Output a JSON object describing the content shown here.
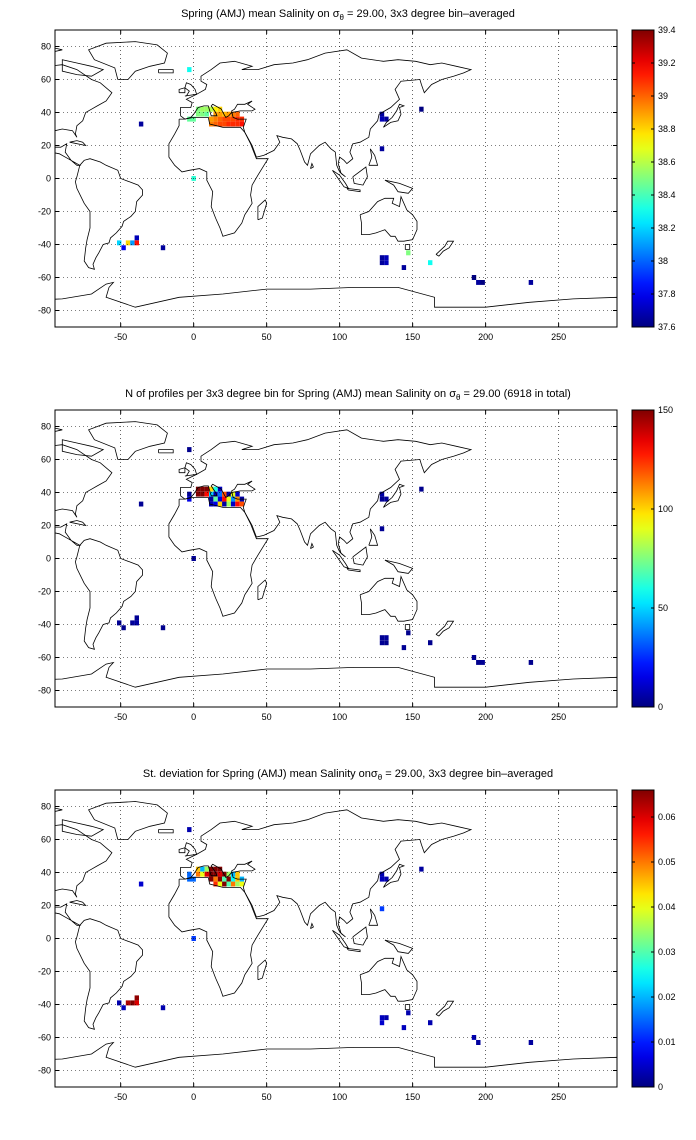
{
  "panels": [
    {
      "title_pre": "Spring (AMJ) mean Salinity on σ",
      "title_sub": "θ",
      "title_post": " = 29.00, 3x3 degree bin–averaged"
    },
    {
      "title_pre": "N of profiles per 3x3 degree bin for Spring (AMJ) mean Salinity on σ",
      "title_sub": "θ",
      "title_post": " = 29.00 (6918 in total)"
    },
    {
      "title_pre": "St. deviation for Spring (AMJ) mean Salinity onσ",
      "title_sub": "θ",
      "title_post": " = 29.00, 3x3 degree bin–averaged"
    }
  ],
  "chart_data": [
    {
      "type": "heatmap",
      "title": "Spring (AMJ) mean Salinity on σθ = 29.00, 3x3 degree bin–averaged",
      "xlim": [
        -95,
        290
      ],
      "ylim": [
        -90,
        90
      ],
      "xticks": [
        -50,
        0,
        50,
        100,
        150,
        200,
        250
      ],
      "yticks": [
        -80,
        -60,
        -40,
        -20,
        0,
        20,
        40,
        60,
        80
      ],
      "grid": true,
      "colorbar": {
        "range": [
          37.6,
          39.4
        ],
        "ticks": [
          37.6,
          37.8,
          38,
          38.2,
          38.4,
          38.6,
          38.8,
          39,
          39.2,
          39.4
        ]
      },
      "cells": [
        [
          -3,
          36,
          38.45
        ],
        [
          0,
          36,
          38.45
        ],
        [
          3,
          39,
          38.5
        ],
        [
          6,
          39,
          38.5
        ],
        [
          9,
          39,
          38.45
        ],
        [
          9,
          42,
          38.55
        ],
        [
          12,
          42,
          38.6
        ],
        [
          12,
          36,
          38.9
        ],
        [
          15,
          36,
          38.95
        ],
        [
          18,
          36,
          39.0
        ],
        [
          21,
          36,
          39.05
        ],
        [
          24,
          36,
          39.05
        ],
        [
          27,
          36,
          39.05
        ],
        [
          30,
          36,
          39.1
        ],
        [
          33,
          36,
          39.1
        ],
        [
          12,
          33,
          38.95
        ],
        [
          15,
          33,
          39.0
        ],
        [
          18,
          33,
          39.05
        ],
        [
          21,
          33,
          39.05
        ],
        [
          24,
          33,
          39.1
        ],
        [
          27,
          33,
          39.1
        ],
        [
          30,
          33,
          39.1
        ],
        [
          33,
          33,
          39.15
        ],
        [
          15,
          39,
          38.9
        ],
        [
          18,
          39,
          38.9
        ],
        [
          21,
          39,
          38.85
        ],
        [
          24,
          39,
          38.9
        ],
        [
          27,
          39,
          38.95
        ],
        [
          30,
          39,
          39.0
        ],
        [
          3,
          42,
          38.5
        ],
        [
          6,
          42,
          38.55
        ],
        [
          15,
          42,
          38.75
        ],
        [
          18,
          42,
          38.8
        ],
        [
          -36,
          33,
          37.65
        ],
        [
          -3,
          66,
          38.3
        ],
        [
          0,
          0,
          38.35
        ],
        [
          129,
          39,
          37.65
        ],
        [
          129,
          36,
          37.7
        ],
        [
          132,
          36,
          37.65
        ],
        [
          156,
          42,
          37.6
        ],
        [
          129,
          18,
          37.65
        ],
        [
          -51,
          -39,
          38.2
        ],
        [
          -45,
          -39,
          38.8
        ],
        [
          -42,
          -39,
          38.1
        ],
        [
          -39,
          -36,
          37.7
        ],
        [
          -39,
          -39,
          39.15
        ],
        [
          -48,
          -42,
          37.8
        ],
        [
          -21,
          -42,
          37.65
        ],
        [
          129,
          -48,
          37.65
        ],
        [
          132,
          -48,
          37.7
        ],
        [
          129,
          -51,
          37.65
        ],
        [
          132,
          -51,
          37.7
        ],
        [
          147,
          -45,
          38.5
        ],
        [
          144,
          -54,
          37.65
        ],
        [
          162,
          -51,
          38.3
        ],
        [
          192,
          -60,
          37.6
        ],
        [
          195,
          -63,
          37.65
        ],
        [
          198,
          -63,
          37.6
        ],
        [
          231,
          -63,
          37.65
        ]
      ]
    },
    {
      "type": "heatmap",
      "title": "N of profiles per 3x3 degree bin for Spring (AMJ) mean Salinity on σθ = 29.00 (6918 in total)",
      "xlim": [
        -95,
        290
      ],
      "ylim": [
        -90,
        90
      ],
      "xticks": [
        -50,
        0,
        50,
        100,
        150,
        200,
        250
      ],
      "yticks": [
        -80,
        -60,
        -40,
        -20,
        0,
        20,
        40,
        60,
        80
      ],
      "grid": true,
      "colorbar": {
        "range": [
          0,
          150
        ],
        "ticks": [
          0,
          50,
          100,
          150
        ]
      },
      "cells": [
        [
          -3,
          39,
          3
        ],
        [
          -3,
          36,
          15
        ],
        [
          3,
          42,
          150
        ],
        [
          6,
          42,
          150
        ],
        [
          9,
          42,
          150
        ],
        [
          3,
          39,
          150
        ],
        [
          6,
          39,
          150
        ],
        [
          9,
          39,
          130
        ],
        [
          12,
          42,
          100
        ],
        [
          15,
          42,
          60
        ],
        [
          18,
          42,
          10
        ],
        [
          12,
          39,
          50
        ],
        [
          15,
          39,
          8
        ],
        [
          18,
          39,
          35
        ],
        [
          21,
          39,
          120
        ],
        [
          24,
          39,
          5
        ],
        [
          27,
          39,
          90
        ],
        [
          30,
          39,
          10
        ],
        [
          12,
          36,
          5
        ],
        [
          15,
          36,
          70
        ],
        [
          18,
          36,
          12
        ],
        [
          21,
          36,
          130
        ],
        [
          24,
          36,
          90
        ],
        [
          27,
          36,
          40
        ],
        [
          30,
          36,
          110
        ],
        [
          33,
          36,
          5
        ],
        [
          12,
          33,
          8
        ],
        [
          15,
          33,
          15
        ],
        [
          18,
          33,
          100
        ],
        [
          21,
          33,
          5
        ],
        [
          24,
          33,
          80
        ],
        [
          27,
          33,
          10
        ],
        [
          30,
          33,
          130
        ],
        [
          33,
          33,
          120
        ],
        [
          -36,
          33,
          3
        ],
        [
          -3,
          66,
          2
        ],
        [
          0,
          0,
          3
        ],
        [
          129,
          39,
          5
        ],
        [
          129,
          36,
          3
        ],
        [
          132,
          36,
          4
        ],
        [
          156,
          42,
          2
        ],
        [
          129,
          18,
          3
        ],
        [
          -51,
          -39,
          3
        ],
        [
          -48,
          -42,
          2
        ],
        [
          -42,
          -39,
          4
        ],
        [
          -39,
          -36,
          3
        ],
        [
          -39,
          -39,
          5
        ],
        [
          -21,
          -42,
          2
        ],
        [
          129,
          -48,
          3
        ],
        [
          132,
          -48,
          4
        ],
        [
          129,
          -51,
          3
        ],
        [
          132,
          -51,
          2
        ],
        [
          147,
          -45,
          2
        ],
        [
          144,
          -54,
          3
        ],
        [
          162,
          -51,
          2
        ],
        [
          192,
          -60,
          3
        ],
        [
          195,
          -63,
          2
        ],
        [
          198,
          -63,
          3
        ],
        [
          231,
          -63,
          2
        ]
      ]
    },
    {
      "type": "heatmap",
      "title": "St. deviation for Spring (AMJ) mean Salinity onσθ = 29.00, 3x3 degree bin–averaged",
      "xlim": [
        -95,
        290
      ],
      "ylim": [
        -90,
        90
      ],
      "xticks": [
        -50,
        0,
        50,
        100,
        150,
        200,
        250
      ],
      "yticks": [
        -80,
        -60,
        -40,
        -20,
        0,
        20,
        40,
        60,
        80
      ],
      "grid": true,
      "colorbar": {
        "range": [
          0,
          0.066
        ],
        "ticks": [
          0,
          0.01,
          0.02,
          0.03,
          0.04,
          0.05,
          0.06
        ]
      },
      "cells": [
        [
          -3,
          39,
          0.015
        ],
        [
          -3,
          36,
          0.015
        ],
        [
          0,
          36,
          0.015
        ],
        [
          3,
          42,
          0.045
        ],
        [
          6,
          42,
          0.02
        ],
        [
          9,
          42,
          0.035
        ],
        [
          3,
          39,
          0.05
        ],
        [
          6,
          39,
          0.04
        ],
        [
          9,
          39,
          0.06
        ],
        [
          12,
          42,
          0.066
        ],
        [
          15,
          42,
          0.066
        ],
        [
          18,
          42,
          0.066
        ],
        [
          12,
          39,
          0.066
        ],
        [
          15,
          39,
          0.066
        ],
        [
          18,
          39,
          0.06
        ],
        [
          21,
          39,
          0.066
        ],
        [
          24,
          39,
          0.035
        ],
        [
          27,
          39,
          0.02
        ],
        [
          30,
          39,
          0.045
        ],
        [
          12,
          36,
          0.066
        ],
        [
          15,
          36,
          0.05
        ],
        [
          18,
          36,
          0.066
        ],
        [
          21,
          36,
          0.03
        ],
        [
          24,
          36,
          0.066
        ],
        [
          27,
          36,
          0.025
        ],
        [
          30,
          36,
          0.045
        ],
        [
          33,
          36,
          0.02
        ],
        [
          15,
          33,
          0.055
        ],
        [
          18,
          33,
          0.04
        ],
        [
          21,
          33,
          0.066
        ],
        [
          24,
          33,
          0.03
        ],
        [
          27,
          33,
          0.05
        ],
        [
          30,
          33,
          0.035
        ],
        [
          33,
          33,
          0.04
        ],
        [
          -36,
          33,
          0.005
        ],
        [
          -3,
          66,
          0.003
        ],
        [
          0,
          0,
          0.012
        ],
        [
          129,
          39,
          0.003
        ],
        [
          129,
          36,
          0.004
        ],
        [
          132,
          36,
          0.003
        ],
        [
          156,
          42,
          0.002
        ],
        [
          129,
          18,
          0.012
        ],
        [
          -51,
          -39,
          0.003
        ],
        [
          -45,
          -39,
          0.063
        ],
        [
          -42,
          -39,
          0.066
        ],
        [
          -39,
          -39,
          0.06
        ],
        [
          -39,
          -36,
          0.065
        ],
        [
          -48,
          -42,
          0.004
        ],
        [
          -21,
          -42,
          0.003
        ],
        [
          129,
          -48,
          0.004
        ],
        [
          132,
          -48,
          0.003
        ],
        [
          129,
          -51,
          0.005
        ],
        [
          147,
          -45,
          0.003
        ],
        [
          144,
          -54,
          0.004
        ],
        [
          162,
          -51,
          0.003
        ],
        [
          192,
          -60,
          0.003
        ],
        [
          195,
          -63,
          0.002
        ],
        [
          231,
          -63,
          0.002
        ]
      ]
    }
  ]
}
